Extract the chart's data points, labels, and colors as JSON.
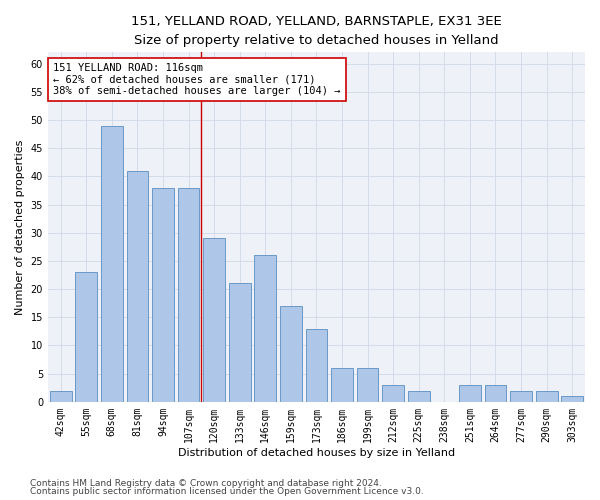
{
  "title_line1": "151, YELLAND ROAD, YELLAND, BARNSTAPLE, EX31 3EE",
  "title_line2": "Size of property relative to detached houses in Yelland",
  "xlabel": "Distribution of detached houses by size in Yelland",
  "ylabel": "Number of detached properties",
  "bar_values": [
    2,
    23,
    49,
    41,
    38,
    38,
    29,
    21,
    26,
    17,
    13,
    6,
    6,
    3,
    2,
    0,
    3,
    3,
    2,
    2,
    1
  ],
  "bin_labels": [
    "42sqm",
    "55sqm",
    "68sqm",
    "81sqm",
    "94sqm",
    "107sqm",
    "120sqm",
    "133sqm",
    "146sqm",
    "159sqm",
    "173sqm",
    "186sqm",
    "199sqm",
    "212sqm",
    "225sqm",
    "238sqm",
    "251sqm",
    "264sqm",
    "277sqm",
    "290sqm",
    "303sqm"
  ],
  "bar_color": "#aec6e8",
  "bar_edge_color": "#5a8fc2",
  "grid_color": "#d0d8e8",
  "bg_color": "#eef2f8",
  "vline_x_index": 6,
  "vline_color": "#cc0000",
  "annotation_text": "151 YELLAND ROAD: 116sqm\n← 62% of detached houses are smaller (171)\n38% of semi-detached houses are larger (104) →",
  "annotation_box_facecolor": "#ffffff",
  "annotation_box_edgecolor": "#cc0000",
  "ylim": [
    0,
    62
  ],
  "yticks": [
    0,
    5,
    10,
    15,
    20,
    25,
    30,
    35,
    40,
    45,
    50,
    55,
    60
  ],
  "footer_line1": "Contains HM Land Registry data © Crown copyright and database right 2024.",
  "footer_line2": "Contains public sector information licensed under the Open Government Licence v3.0.",
  "title_fontsize": 9.5,
  "subtitle_fontsize": 8.5,
  "axis_label_fontsize": 8,
  "tick_fontsize": 7,
  "annotation_fontsize": 7.5,
  "footer_fontsize": 6.5
}
